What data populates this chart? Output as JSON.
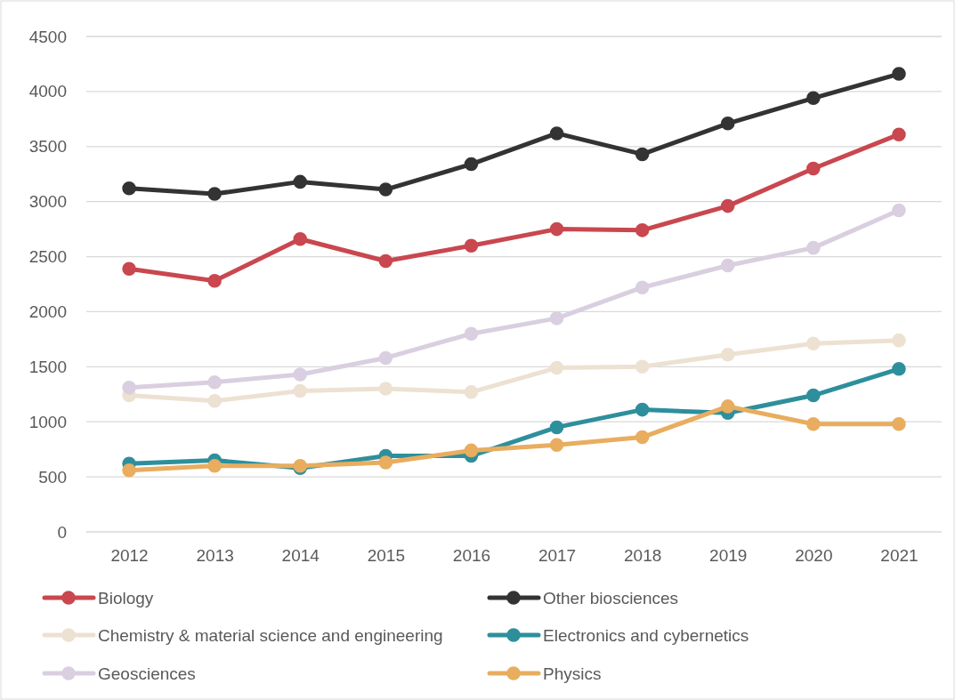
{
  "chart_data": {
    "type": "line",
    "categories": [
      "2012",
      "2013",
      "2014",
      "2015",
      "2016",
      "2017",
      "2018",
      "2019",
      "2020",
      "2021"
    ],
    "ylim": [
      0,
      4500
    ],
    "yticks": [
      0,
      500,
      1000,
      1500,
      2000,
      2500,
      3000,
      3500,
      4000,
      4500
    ],
    "grid": "y",
    "legend": "bottom",
    "marker": "circle",
    "line_style": "solid",
    "series": [
      {
        "name": "Biology",
        "color": "#c9474f",
        "values": [
          2390,
          2280,
          2660,
          2460,
          2600,
          2750,
          2740,
          2960,
          3300,
          3610
        ]
      },
      {
        "name": "Other biosciences",
        "color": "#333333",
        "values": [
          3120,
          3070,
          3180,
          3110,
          3340,
          3620,
          3430,
          3710,
          3940,
          4160
        ]
      },
      {
        "name": "Chemistry & material science and engineering",
        "color": "#ede1d2",
        "values": [
          1240,
          1190,
          1280,
          1300,
          1270,
          1490,
          1500,
          1610,
          1710,
          1740
        ]
      },
      {
        "name": "Electronics and cybernetics",
        "color": "#2e8f9c",
        "values": [
          620,
          650,
          580,
          690,
          690,
          950,
          1110,
          1080,
          1240,
          1480
        ]
      },
      {
        "name": "Geosciences",
        "color": "#d9cfe0",
        "values": [
          1310,
          1360,
          1430,
          1580,
          1800,
          1940,
          2220,
          2420,
          2580,
          2920
        ]
      },
      {
        "name": "Physics",
        "color": "#e8ad5f",
        "values": [
          560,
          600,
          600,
          630,
          740,
          790,
          860,
          1140,
          980,
          980
        ]
      }
    ]
  }
}
